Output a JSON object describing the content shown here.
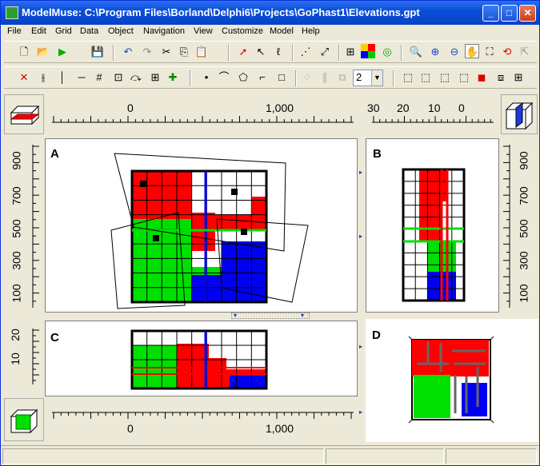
{
  "window": {
    "title": "ModelMuse: C:\\Program Files\\Borland\\Delphi6\\Projects\\GoPhast1\\Elevations.gpt"
  },
  "menu": [
    "File",
    "Edit",
    "Grid",
    "Data",
    "Object",
    "Navigation",
    "View",
    "Customize",
    "Model",
    "Help"
  ],
  "toolbar": {
    "layer_value": "2"
  },
  "panels": {
    "a": "A",
    "b": "B",
    "c": "C",
    "d": "D"
  },
  "ruler_top": [
    "0",
    "1,000"
  ],
  "ruler_right_top": [
    "30",
    "20",
    "10",
    "0"
  ],
  "ruler_left": [
    "900",
    "700",
    "500",
    "300",
    "100"
  ],
  "ruler_right": [
    "900",
    "700",
    "500",
    "300",
    "100"
  ],
  "ruler_front": [
    "20",
    "10"
  ],
  "ruler_bottom": [
    "0",
    "1,000"
  ],
  "colors": {
    "red": "#ff0000",
    "green": "#00ff00",
    "blue": "#0000ff",
    "grid": "#000000",
    "titlebar": "#0a4fd8"
  }
}
